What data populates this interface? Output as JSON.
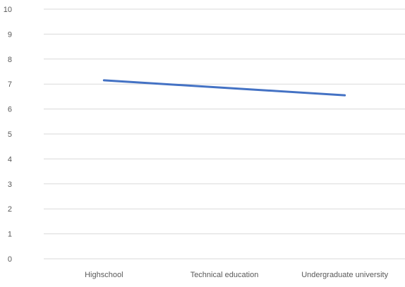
{
  "chart_data": {
    "type": "line",
    "title": "",
    "categories": [
      "Highschool",
      "Technical education",
      "Undergraduate university"
    ],
    "series": [
      {
        "values": [
          7.15,
          6.85,
          6.55
        ]
      }
    ],
    "ylim": [
      0,
      10
    ],
    "yticks": [
      0,
      1,
      2,
      3,
      4,
      5,
      6,
      7,
      8,
      9,
      10
    ],
    "grid": true,
    "xlabel": "",
    "ylabel": "",
    "line_color": "#4472C4",
    "grid_color": "#d9d9d9",
    "label_color": "#595959"
  }
}
